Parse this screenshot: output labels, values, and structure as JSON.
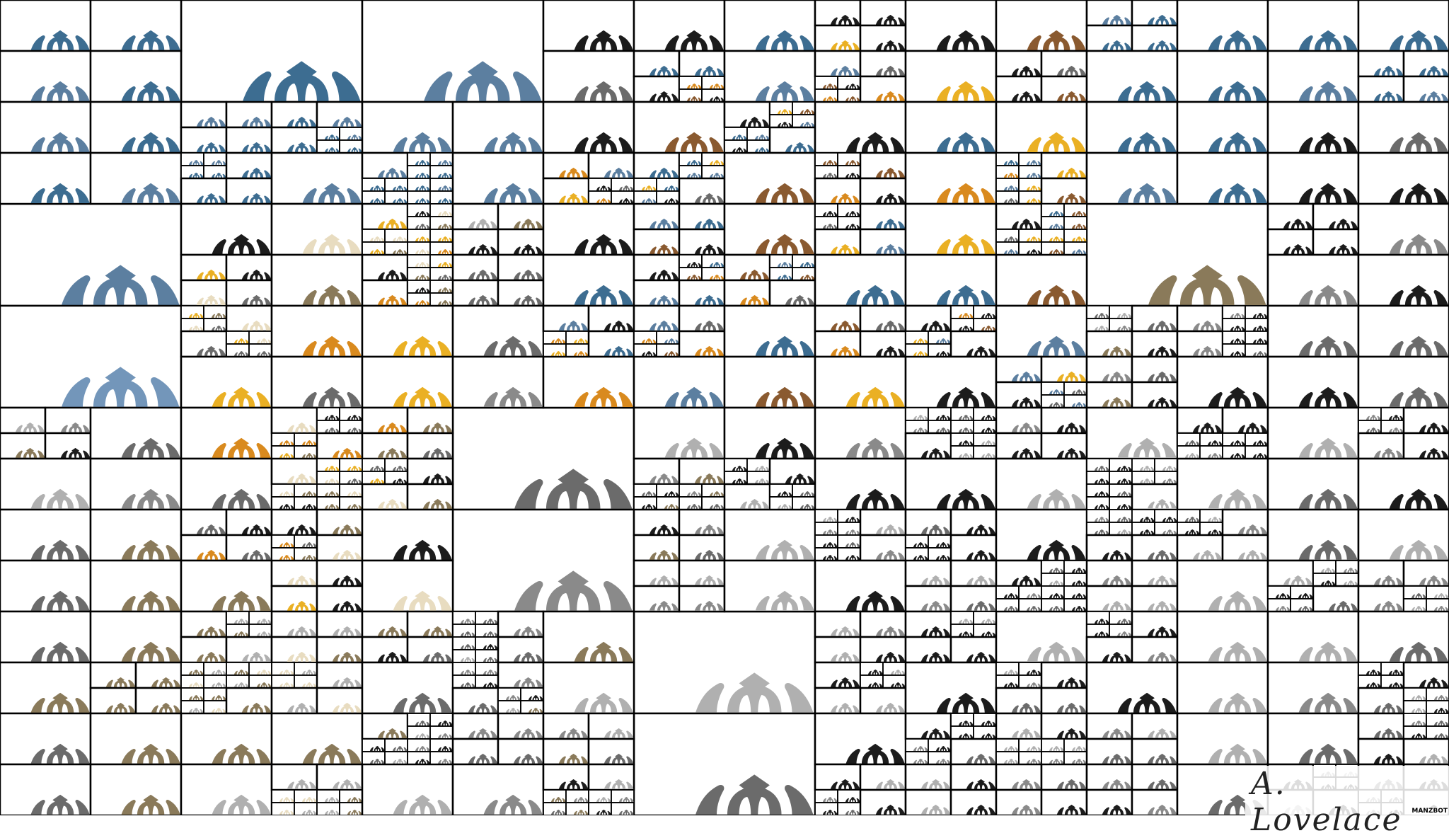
{
  "artwork": {
    "signature": "A. Lovelace",
    "watermark": "MANZBOT",
    "glyph": "arch-crown-motif",
    "line_color": "#000000",
    "background": "#ffffff",
    "palette": {
      "steel_blue": "#3d6d91",
      "light_blue": "#7396ba",
      "slate_blue": "#5c7fa0",
      "gold": "#eab024",
      "amber": "#d98a1e",
      "brown": "#8a5a30",
      "olive": "#8a7a5a",
      "cream": "#e8dcc0",
      "grey": "#6b6b6b",
      "mid_grey": "#8a8a8a",
      "light_grey": "#b0b0b0",
      "dark": "#1c1c1c"
    }
  }
}
